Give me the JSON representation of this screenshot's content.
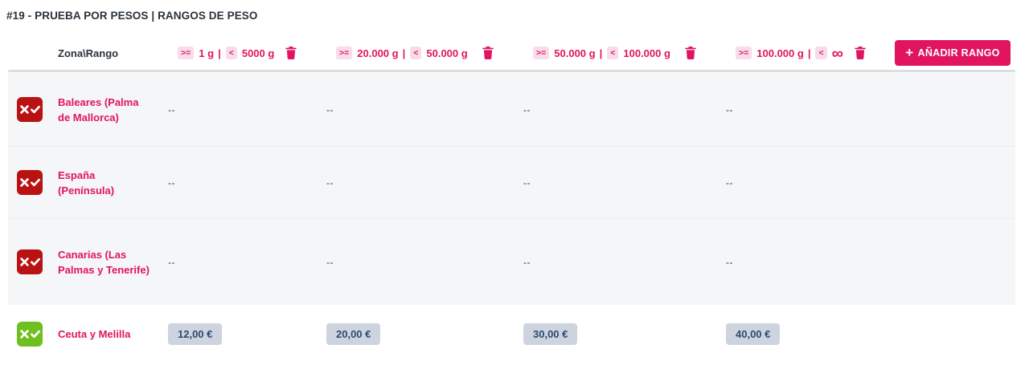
{
  "page": {
    "title": "#19 - PRUEBA POR PESOS | RANGOS DE PESO"
  },
  "header": {
    "corner_label": "Zona\\Rango",
    "operator_gte": ">=",
    "operator_lt": "<",
    "separator": "|",
    "add_range_plus": "+",
    "add_range_label": "AÑADIR RANGO",
    "trash_icon": "trash-icon",
    "ranges": [
      {
        "from": "1 g",
        "to": "5000 g",
        "infinity": false
      },
      {
        "from": "20.000 g",
        "to": "50.000 g",
        "infinity": false
      },
      {
        "from": "50.000 g",
        "to": "100.000 g",
        "infinity": false
      },
      {
        "from": "100.000 g",
        "to": "∞",
        "infinity": true
      }
    ]
  },
  "rows": [
    {
      "zone": "Baleares (Palma de Mallorca)",
      "enabled": false,
      "values": [
        "--",
        "--",
        "--",
        "--"
      ]
    },
    {
      "zone": "España (Península)",
      "enabled": false,
      "values": [
        "--",
        "--",
        "--",
        "--"
      ]
    },
    {
      "zone": "Canarias (Las Palmas y Tenerife)",
      "enabled": false,
      "values": [
        "--",
        "--",
        "--",
        "--"
      ]
    },
    {
      "zone": "Ceuta y Melilla",
      "enabled": true,
      "values": [
        "12,00 €",
        "20,00 €",
        "30,00 €",
        "40,00 €"
      ]
    }
  ],
  "colors": {
    "accent_pink": "#e1145f",
    "chip_pink_bg": "#f9dcea",
    "disabled_red": "#b91212",
    "enabled_green": "#6ec01e",
    "row_gray_bg": "#f5f6f8",
    "price_box_bg": "#cdd4e0",
    "price_text": "#2b4a70",
    "title_dark": "#29323b"
  }
}
